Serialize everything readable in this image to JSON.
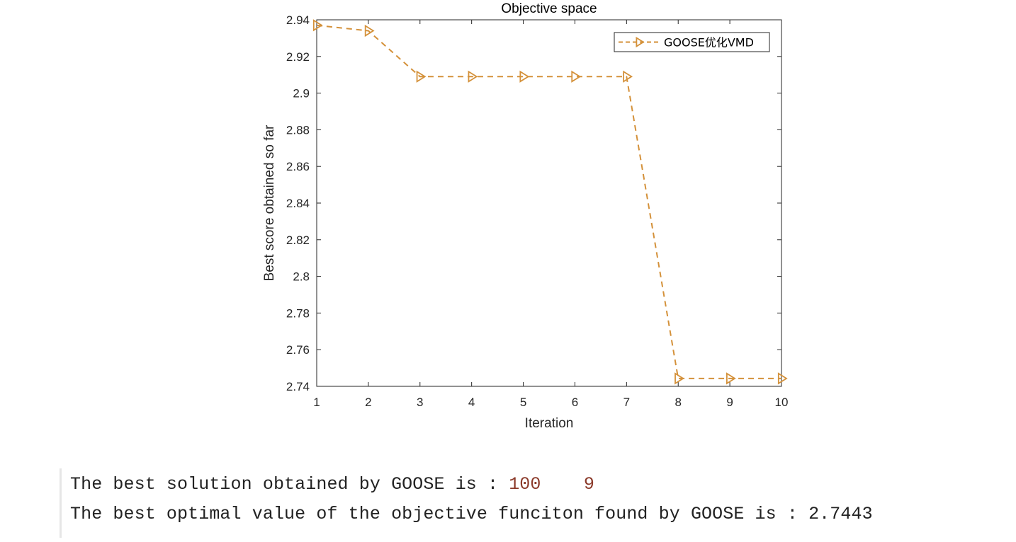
{
  "chart_data": {
    "type": "line",
    "title": "Objective space",
    "xlabel": "Iteration",
    "ylabel": "Best score obtained so far",
    "xlim": [
      1,
      10
    ],
    "ylim": [
      2.74,
      2.94
    ],
    "x_ticks": [
      "1",
      "2",
      "3",
      "4",
      "5",
      "6",
      "7",
      "8",
      "9",
      "10"
    ],
    "y_ticks": [
      "2.74",
      "2.76",
      "2.78",
      "2.8",
      "2.82",
      "2.84",
      "2.86",
      "2.88",
      "2.9",
      "2.92",
      "2.94"
    ],
    "legend_position": "top-right",
    "series": [
      {
        "name": "GOOSE优化VMD",
        "color": "#d4913a",
        "line_style": "dashed",
        "marker": "triangle-right",
        "x": [
          1,
          2,
          3,
          4,
          5,
          6,
          7,
          8,
          9,
          10
        ],
        "values": [
          2.937,
          2.934,
          2.909,
          2.909,
          2.909,
          2.909,
          2.909,
          2.7443,
          2.7443,
          2.7443
        ]
      }
    ]
  },
  "console": {
    "line1_text": "The best solution obtained by GOOSE is : ",
    "line1_values": "100    9",
    "line2_text": "The best optimal value of the objective funciton found by GOOSE is : ",
    "line2_value": "2.7443"
  }
}
